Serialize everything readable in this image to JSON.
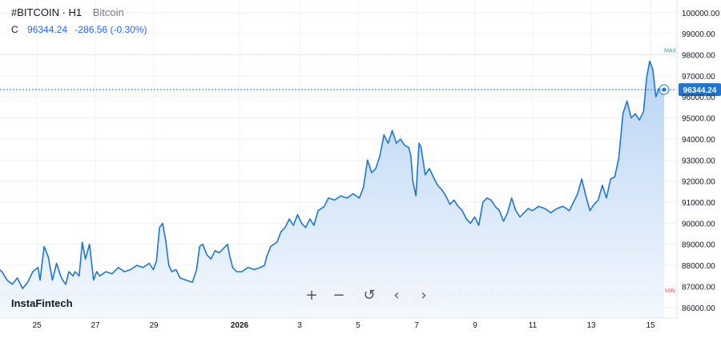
{
  "header": {
    "symbol": "#BITCOIN · H1",
    "description": "Bitcoin",
    "ohlc_label": "C",
    "close_value": "96344.24",
    "change_text": "-286.56 (-0.30%)"
  },
  "brand": "InstaFintech",
  "toolbar": [
    {
      "name": "zoom-in-button",
      "glyph": "+"
    },
    {
      "name": "zoom-out-button",
      "glyph": "−"
    },
    {
      "name": "reset-button",
      "glyph": "↺"
    },
    {
      "name": "scroll-left-button",
      "glyph": "‹"
    },
    {
      "name": "scroll-right-button",
      "glyph": "›"
    }
  ],
  "colors": {
    "line": "#1e76d2",
    "fill_top": "#b7d4f3",
    "fill_bottom": "#f4f8fe",
    "grid": "#eef1f5",
    "axis_text": "#131722",
    "price_tag_bg": "#1e76d2",
    "max_color": "#26a69a",
    "min_color": "#ef5350"
  },
  "chart_data": {
    "type": "area",
    "title": "",
    "xlabel": "",
    "ylabel": "",
    "ylim": [
      85500,
      100600
    ],
    "grid": true,
    "y_ticks": [
      "100000.00",
      "99000.00",
      "98000.00",
      "97000.00",
      "96000.00",
      "95000.00",
      "94000.00",
      "93000.00",
      "92000.00",
      "91000.00",
      "90000.00",
      "89000.00",
      "88000.00",
      "87000.00",
      "86000.00"
    ],
    "x_ticks": [
      "25",
      "27",
      "29",
      "2026",
      "3",
      "5",
      "7",
      "9",
      "11",
      "13",
      "15"
    ],
    "current_price": 96344.24,
    "current_price_label": "96344.24",
    "max_label": "MAX",
    "min_label": "MIN",
    "max_level": 98000,
    "min_level": 86600,
    "series": [
      {
        "points": [
          [
            0,
            87900
          ],
          [
            0.25,
            87700
          ],
          [
            0.5,
            87300
          ],
          [
            0.75,
            87100
          ],
          [
            1,
            87400
          ],
          [
            1.25,
            86900
          ],
          [
            1.5,
            87200
          ],
          [
            1.75,
            87700
          ],
          [
            2,
            87900
          ],
          [
            2.1,
            87300
          ],
          [
            2.3,
            88900
          ],
          [
            2.5,
            88400
          ],
          [
            2.7,
            87300
          ],
          [
            2.9,
            88100
          ],
          [
            3.1,
            87500
          ],
          [
            3.2,
            87300
          ],
          [
            3.35,
            87100
          ],
          [
            3.5,
            87700
          ],
          [
            3.7,
            87500
          ],
          [
            3.8,
            87700
          ],
          [
            4,
            87500
          ],
          [
            4.15,
            89100
          ],
          [
            4.3,
            88300
          ],
          [
            4.5,
            89000
          ],
          [
            4.7,
            87300
          ],
          [
            4.85,
            87700
          ],
          [
            5,
            87500
          ],
          [
            5.3,
            87700
          ],
          [
            5.6,
            87600
          ],
          [
            5.9,
            87900
          ],
          [
            6.2,
            87700
          ],
          [
            6.5,
            87800
          ],
          [
            6.8,
            88000
          ],
          [
            7.1,
            87900
          ],
          [
            7.4,
            88100
          ],
          [
            7.6,
            87800
          ],
          [
            7.75,
            88200
          ],
          [
            7.9,
            89800
          ],
          [
            8.05,
            90000
          ],
          [
            8.2,
            89200
          ],
          [
            8.35,
            88000
          ],
          [
            8.5,
            87700
          ],
          [
            8.7,
            87800
          ],
          [
            8.9,
            87400
          ],
          [
            9.2,
            87300
          ],
          [
            9.5,
            87200
          ],
          [
            9.7,
            87800
          ],
          [
            9.85,
            88900
          ],
          [
            10,
            89000
          ],
          [
            10.2,
            88500
          ],
          [
            10.4,
            88300
          ],
          [
            10.6,
            88700
          ],
          [
            10.8,
            88600
          ],
          [
            11,
            88800
          ],
          [
            11.2,
            89000
          ],
          [
            11.3,
            88500
          ],
          [
            11.45,
            87900
          ],
          [
            11.65,
            87700
          ],
          [
            11.9,
            87700
          ],
          [
            12.2,
            87900
          ],
          [
            12.5,
            87800
          ],
          [
            12.8,
            87900
          ],
          [
            13,
            88000
          ],
          [
            13.1,
            88400
          ],
          [
            13.3,
            88900
          ],
          [
            13.6,
            89100
          ],
          [
            13.8,
            89600
          ],
          [
            14,
            89800
          ],
          [
            14.2,
            90200
          ],
          [
            14.4,
            89900
          ],
          [
            14.6,
            90400
          ],
          [
            14.8,
            90000
          ],
          [
            15,
            89800
          ],
          [
            15.2,
            90200
          ],
          [
            15.4,
            89900
          ],
          [
            15.6,
            90600
          ],
          [
            15.9,
            90800
          ],
          [
            16.1,
            91200
          ],
          [
            16.4,
            91100
          ],
          [
            16.7,
            91300
          ],
          [
            17,
            91200
          ],
          [
            17.3,
            91400
          ],
          [
            17.6,
            91200
          ],
          [
            17.8,
            91700
          ],
          [
            18,
            93000
          ],
          [
            18.2,
            92400
          ],
          [
            18.4,
            92600
          ],
          [
            18.6,
            93200
          ],
          [
            18.8,
            94200
          ],
          [
            19,
            93800
          ],
          [
            19.2,
            94400
          ],
          [
            19.4,
            93800
          ],
          [
            19.6,
            94000
          ],
          [
            19.8,
            93700
          ],
          [
            20,
            93600
          ],
          [
            20.1,
            93200
          ],
          [
            20.2,
            92000
          ],
          [
            20.35,
            91300
          ],
          [
            20.5,
            93800
          ],
          [
            20.6,
            93600
          ],
          [
            20.8,
            92300
          ],
          [
            21,
            92600
          ],
          [
            21.2,
            92200
          ],
          [
            21.4,
            91800
          ],
          [
            21.6,
            91600
          ],
          [
            21.8,
            91300
          ],
          [
            22,
            90900
          ],
          [
            22.2,
            91100
          ],
          [
            22.4,
            90800
          ],
          [
            22.6,
            90600
          ],
          [
            22.8,
            90200
          ],
          [
            23,
            90000
          ],
          [
            23.2,
            90300
          ],
          [
            23.4,
            89900
          ],
          [
            23.6,
            91000
          ],
          [
            23.8,
            91200
          ],
          [
            24,
            91100
          ],
          [
            24.2,
            90800
          ],
          [
            24.4,
            90600
          ],
          [
            24.6,
            90100
          ],
          [
            24.8,
            90500
          ],
          [
            25,
            91200
          ],
          [
            25.2,
            90600
          ],
          [
            25.4,
            90300
          ],
          [
            25.6,
            90500
          ],
          [
            25.8,
            90700
          ],
          [
            26,
            90600
          ],
          [
            26.3,
            90800
          ],
          [
            26.6,
            90700
          ],
          [
            26.9,
            90500
          ],
          [
            27.2,
            90700
          ],
          [
            27.5,
            90800
          ],
          [
            27.8,
            90600
          ],
          [
            28,
            91000
          ],
          [
            28.2,
            91400
          ],
          [
            28.4,
            92100
          ],
          [
            28.6,
            91300
          ],
          [
            28.8,
            90600
          ],
          [
            29,
            90900
          ],
          [
            29.2,
            91100
          ],
          [
            29.4,
            91800
          ],
          [
            29.6,
            91200
          ],
          [
            29.8,
            92100
          ],
          [
            30,
            92200
          ],
          [
            30.2,
            93100
          ],
          [
            30.4,
            95200
          ],
          [
            30.6,
            95800
          ],
          [
            30.8,
            95000
          ],
          [
            31,
            95200
          ],
          [
            31.2,
            94900
          ],
          [
            31.4,
            95300
          ],
          [
            31.55,
            96900
          ],
          [
            31.7,
            97700
          ],
          [
            31.85,
            97300
          ],
          [
            32,
            96000
          ],
          [
            32.15,
            96400
          ],
          [
            32.3,
            96300
          ],
          [
            32.4,
            96344
          ]
        ]
      }
    ]
  }
}
